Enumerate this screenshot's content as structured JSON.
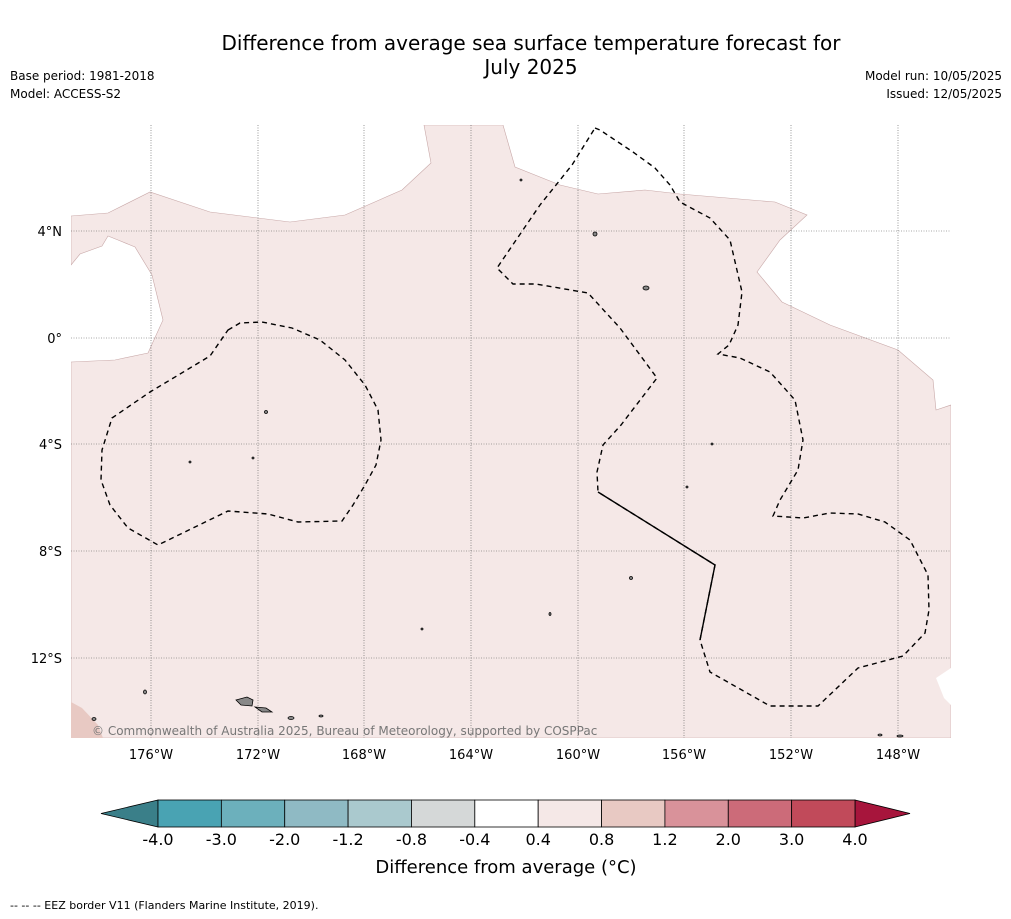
{
  "title_line1": "Difference from average sea surface temperature forecast for",
  "title_line2": "July 2025",
  "base_period": "Base period: 1981-2018",
  "model": "Model: ACCESS-S2",
  "model_run": "Model run: 10/05/2025",
  "issued": "Issued: 12/05/2025",
  "copyright": "© Commonwealth of Australia 2025, Bureau of Meteorology, supported by COSPPac",
  "lat_labels": [
    "4°N",
    "0°",
    "4°S",
    "8°S",
    "12°S"
  ],
  "lon_labels": [
    "176°W",
    "172°W",
    "168°W",
    "164°W",
    "160°W",
    "156°W",
    "152°W",
    "148°W"
  ],
  "colorbar": {
    "label": "Difference from average (°C)",
    "ticks": [
      "-4.0",
      "-3.0",
      "-2.0",
      "-1.2",
      "-0.8",
      "-0.4",
      "0.4",
      "0.8",
      "1.2",
      "2.0",
      "3.0",
      "4.0"
    ],
    "colors": [
      "#49a3b3",
      "#6cb0bc",
      "#8fbac4",
      "#aac9ce",
      "#d5d8d8",
      "#ffffff",
      "#f5e8e7",
      "#e8c9c3",
      "#d9929a",
      "#cc6b79",
      "#c14a5a"
    ],
    "under_color": "#3a7f89",
    "over_color": "#a7153c"
  },
  "map_colors": {
    "anomaly_0_4_to_0_8": "#f5e8e7",
    "anomaly_0_8_to_1_2": "#e8c9c3"
  },
  "legend_footer": "-- -- -- EEZ border V11 (Flanders Marine Institute, 2019)."
}
